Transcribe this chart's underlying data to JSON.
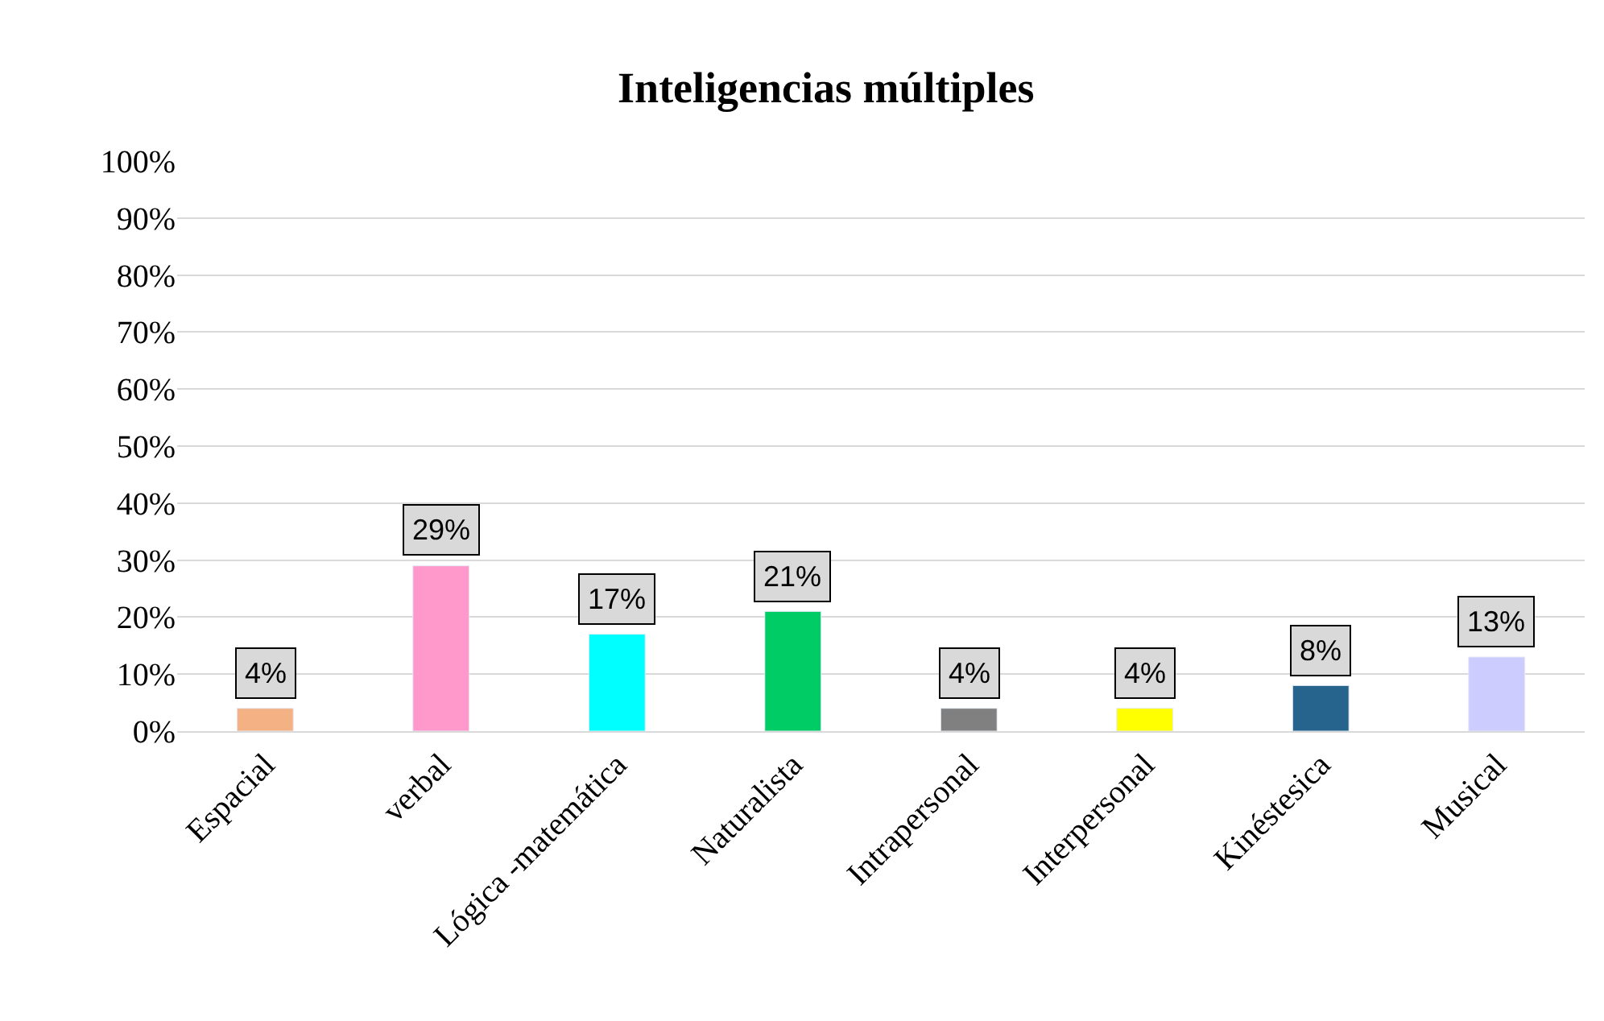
{
  "chart_data": {
    "type": "bar",
    "title": "Inteligencias múltiples",
    "categories": [
      "Espacial",
      "verbal",
      "Lógica -matemática",
      "Naturalista",
      "Intrapersonal",
      "Interpersonal",
      "Kinéstesica",
      "Musical"
    ],
    "values": [
      4,
      29,
      17,
      21,
      4,
      4,
      8,
      13
    ],
    "colors": [
      "#f4b183",
      "#ff99cc",
      "#00ffff",
      "#00cc66",
      "#808080",
      "#ffff00",
      "#26648e",
      "#ccccff"
    ],
    "value_labels": [
      "4%",
      "29%",
      "17%",
      "21%",
      "4%",
      "4%",
      "8%",
      "13%"
    ],
    "ylim": [
      0,
      100
    ],
    "yticks": [
      {
        "value": 0,
        "label": "0%"
      },
      {
        "value": 10,
        "label": "10%"
      },
      {
        "value": 20,
        "label": "20%"
      },
      {
        "value": 30,
        "label": "30%"
      },
      {
        "value": 40,
        "label": "40%"
      },
      {
        "value": 50,
        "label": "50%"
      },
      {
        "value": 60,
        "label": "60%"
      },
      {
        "value": 70,
        "label": "70%"
      },
      {
        "value": 80,
        "label": "80%"
      },
      {
        "value": 90,
        "label": "90%"
      },
      {
        "value": 100,
        "label": "100%"
      }
    ],
    "grid": "y"
  }
}
